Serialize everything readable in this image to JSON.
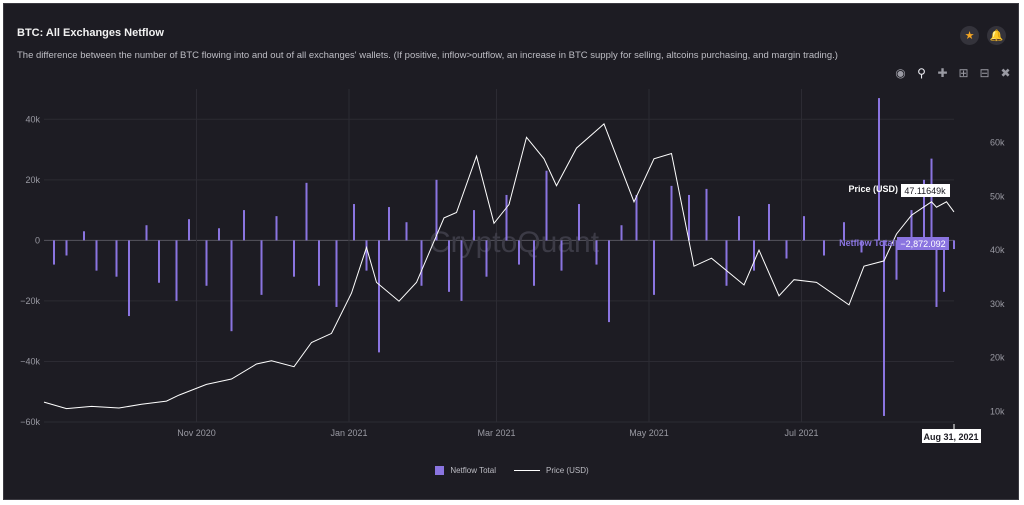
{
  "header": {
    "title": "BTC: All Exchanges Netflow",
    "subtitle": "The difference between the number of BTC flowing into and out of all exchanges' wallets. (If positive, inflow>outflow, an increase in BTC supply for selling, altcoins purchasing, and margin trading.)"
  },
  "icons": {
    "star": "star-icon",
    "bell": "bell-icon",
    "camera": "camera-icon",
    "zoom": "zoom-icon",
    "pan": "pan-icon",
    "zoom_in": "zoom-in-icon",
    "zoom_out": "zoom-out-icon",
    "reset": "autoscale-icon"
  },
  "colors": {
    "background": "#1d1c23",
    "bar": "#8a74e0",
    "line": "#ffffff",
    "accent": "#f5a623",
    "hover_netflow": "#8a74e0"
  },
  "watermark": "CryptoQuant",
  "hover": {
    "price_label": "Price (USD)",
    "price_value": "47.11649k",
    "netflow_label": "Netflow Total",
    "netflow_value": "−2,872.092",
    "date": "Aug 31, 2021"
  },
  "legend": [
    {
      "name": "Netflow Total",
      "style": "bar"
    },
    {
      "name": "Price (USD)",
      "style": "line"
    }
  ],
  "chart_data": {
    "type": "bar",
    "x_range": [
      "2020-09-01",
      "2021-08-31"
    ],
    "x_ticks": [
      {
        "date": "2020-11-01",
        "label": "Nov 2020"
      },
      {
        "date": "2021-01-01",
        "label": "Jan 2021"
      },
      {
        "date": "2021-03-01",
        "label": "Mar 2021"
      },
      {
        "date": "2021-05-01",
        "label": "May 2021"
      },
      {
        "date": "2021-07-01",
        "label": "Jul 2021"
      }
    ],
    "y_left": {
      "min": -60000,
      "max": 50000,
      "ticks": [
        40000,
        20000,
        0,
        -20000,
        -40000,
        -60000
      ],
      "tick_labels": [
        "40k",
        "20k",
        "0",
        "−20k",
        "−40k",
        "−60k"
      ]
    },
    "y_right": {
      "min": 8000,
      "max": 70000,
      "ticks": [
        60000,
        50000,
        40000,
        30000,
        20000,
        10000
      ],
      "tick_labels": [
        "60k",
        "50k",
        "40k",
        "30k",
        "20k",
        "10k"
      ]
    },
    "grid": true,
    "legend_position": "bottom",
    "series": [
      {
        "name": "Netflow Total",
        "type": "bar",
        "axis": "left",
        "points": [
          [
            "2020-09-05",
            -8000
          ],
          [
            "2020-09-10",
            -5000
          ],
          [
            "2020-09-17",
            3000
          ],
          [
            "2020-09-22",
            -10000
          ],
          [
            "2020-09-30",
            -12000
          ],
          [
            "2020-10-05",
            -25000
          ],
          [
            "2020-10-12",
            5000
          ],
          [
            "2020-10-17",
            -14000
          ],
          [
            "2020-10-24",
            -20000
          ],
          [
            "2020-10-29",
            7000
          ],
          [
            "2020-11-05",
            -15000
          ],
          [
            "2020-11-10",
            4000
          ],
          [
            "2020-11-15",
            -30000
          ],
          [
            "2020-11-20",
            10000
          ],
          [
            "2020-11-27",
            -18000
          ],
          [
            "2020-12-03",
            8000
          ],
          [
            "2020-12-10",
            -12000
          ],
          [
            "2020-12-15",
            19000
          ],
          [
            "2020-12-20",
            -15000
          ],
          [
            "2020-12-27",
            -22000
          ],
          [
            "2021-01-03",
            12000
          ],
          [
            "2021-01-08",
            -10000
          ],
          [
            "2021-01-13",
            -37000
          ],
          [
            "2021-01-17",
            11000
          ],
          [
            "2021-01-24",
            6000
          ],
          [
            "2021-01-30",
            -15000
          ],
          [
            "2021-02-05",
            20000
          ],
          [
            "2021-02-10",
            -17000
          ],
          [
            "2021-02-15",
            -20000
          ],
          [
            "2021-02-20",
            10000
          ],
          [
            "2021-02-25",
            -12000
          ],
          [
            "2021-03-05",
            15000
          ],
          [
            "2021-03-10",
            -8000
          ],
          [
            "2021-03-16",
            -15000
          ],
          [
            "2021-03-21",
            23000
          ],
          [
            "2021-03-27",
            -10000
          ],
          [
            "2021-04-03",
            12000
          ],
          [
            "2021-04-10",
            -8000
          ],
          [
            "2021-04-15",
            -27000
          ],
          [
            "2021-04-20",
            5000
          ],
          [
            "2021-04-26",
            15000
          ],
          [
            "2021-05-03",
            -18000
          ],
          [
            "2021-05-10",
            18000
          ],
          [
            "2021-05-17",
            15000
          ],
          [
            "2021-05-24",
            17000
          ],
          [
            "2021-06-01",
            -15000
          ],
          [
            "2021-06-06",
            8000
          ],
          [
            "2021-06-12",
            -10000
          ],
          [
            "2021-06-18",
            12000
          ],
          [
            "2021-06-25",
            -6000
          ],
          [
            "2021-07-02",
            8000
          ],
          [
            "2021-07-10",
            -5000
          ],
          [
            "2021-07-18",
            6000
          ],
          [
            "2021-07-25",
            -4000
          ],
          [
            "2021-08-01",
            47000
          ],
          [
            "2021-08-03",
            -58000
          ],
          [
            "2021-08-08",
            -13000
          ],
          [
            "2021-08-14",
            10000
          ],
          [
            "2021-08-19",
            20000
          ],
          [
            "2021-08-22",
            27000
          ],
          [
            "2021-08-24",
            -22000
          ],
          [
            "2021-08-27",
            -17000
          ],
          [
            "2021-08-31",
            -2872.092
          ]
        ]
      },
      {
        "name": "Price (USD)",
        "type": "line",
        "axis": "right",
        "points": [
          [
            "2020-09-01",
            11700
          ],
          [
            "2020-09-10",
            10500
          ],
          [
            "2020-09-20",
            10900
          ],
          [
            "2020-10-01",
            10600
          ],
          [
            "2020-10-10",
            11300
          ],
          [
            "2020-10-20",
            11900
          ],
          [
            "2020-10-25",
            13000
          ],
          [
            "2020-11-05",
            15000
          ],
          [
            "2020-11-15",
            16000
          ],
          [
            "2020-11-25",
            18800
          ],
          [
            "2020-12-01",
            19400
          ],
          [
            "2020-12-10",
            18300
          ],
          [
            "2020-12-17",
            22800
          ],
          [
            "2020-12-25",
            24500
          ],
          [
            "2021-01-02",
            32000
          ],
          [
            "2021-01-08",
            40500
          ],
          [
            "2021-01-12",
            34000
          ],
          [
            "2021-01-21",
            30500
          ],
          [
            "2021-01-28",
            34000
          ],
          [
            "2021-02-08",
            46000
          ],
          [
            "2021-02-13",
            47000
          ],
          [
            "2021-02-21",
            57500
          ],
          [
            "2021-02-28",
            45000
          ],
          [
            "2021-03-06",
            48500
          ],
          [
            "2021-03-13",
            61000
          ],
          [
            "2021-03-20",
            57000
          ],
          [
            "2021-03-25",
            52000
          ],
          [
            "2021-04-02",
            59000
          ],
          [
            "2021-04-13",
            63500
          ],
          [
            "2021-04-25",
            49000
          ],
          [
            "2021-05-03",
            57000
          ],
          [
            "2021-05-10",
            58000
          ],
          [
            "2021-05-19",
            37000
          ],
          [
            "2021-05-26",
            38500
          ],
          [
            "2021-06-08",
            33500
          ],
          [
            "2021-06-14",
            40000
          ],
          [
            "2021-06-22",
            31500
          ],
          [
            "2021-06-28",
            34500
          ],
          [
            "2021-07-07",
            34000
          ],
          [
            "2021-07-20",
            29800
          ],
          [
            "2021-07-26",
            37000
          ],
          [
            "2021-08-03",
            38000
          ],
          [
            "2021-08-08",
            43000
          ],
          [
            "2021-08-14",
            46500
          ],
          [
            "2021-08-22",
            49000
          ],
          [
            "2021-08-24",
            48000
          ],
          [
            "2021-08-28",
            49000
          ],
          [
            "2021-08-31",
            47116.49
          ]
        ]
      }
    ]
  }
}
